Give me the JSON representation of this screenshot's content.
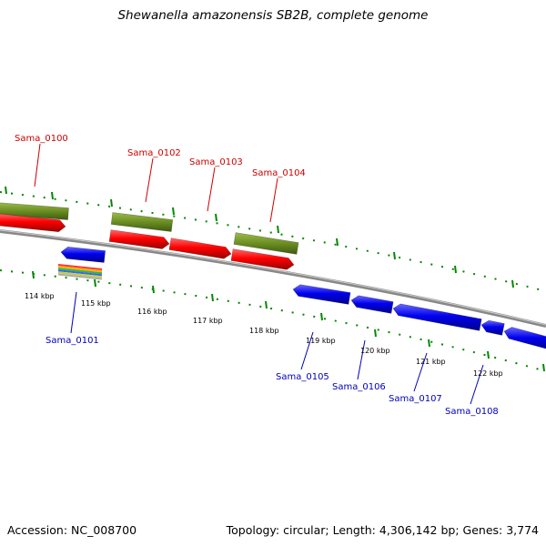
{
  "title": "Shewanella amazonensis SB2B, complete genome",
  "accession": "Accession: NC_008700",
  "summary": "Topology: circular; Length: 4,306,142 bp; Genes: 3,774",
  "colors": {
    "forward_cds": "#ff0000",
    "reverse_cds": "#0000ee",
    "gc_track": "#6b8e23",
    "backbone": "#888888",
    "tick": "#008800",
    "label_top": "#cc0000",
    "label_bottom": "#0000bb"
  },
  "kbp_labels": [
    "114 kbp",
    "115 kbp",
    "116 kbp",
    "117 kbp",
    "118 kbp",
    "119 kbp",
    "120 kbp",
    "121 kbp",
    "122 kbp"
  ],
  "top_gene_labels": [
    "Sama_0100",
    "Sama_0102",
    "Sama_0103",
    "Sama_0104"
  ],
  "bottom_gene_labels": [
    "Sama_0101",
    "Sama_0105",
    "Sama_0106",
    "Sama_0107",
    "Sama_0108"
  ]
}
